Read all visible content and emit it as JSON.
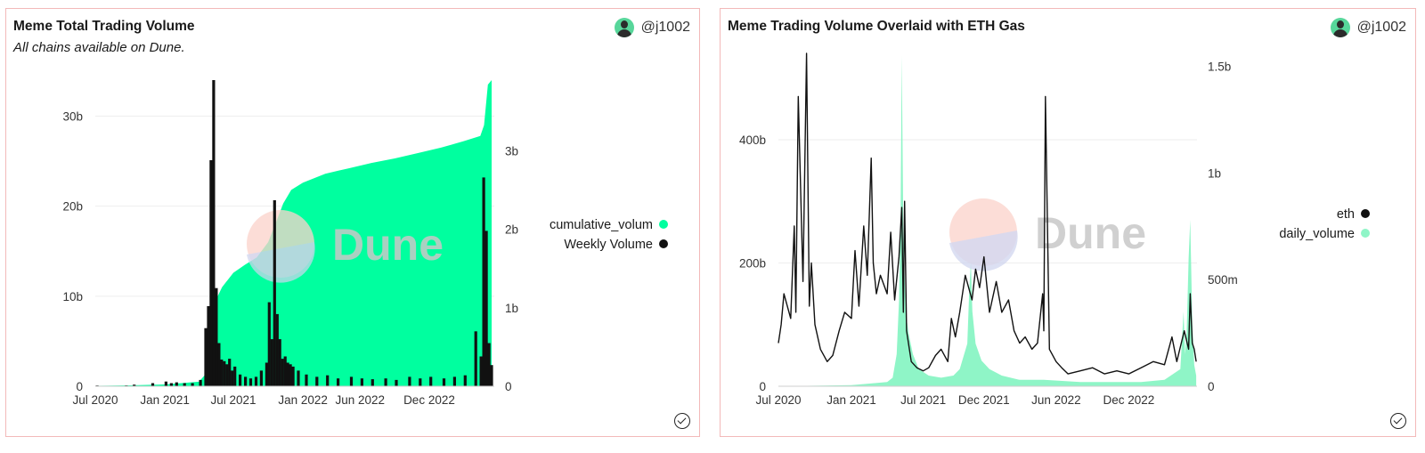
{
  "colors": {
    "area_green": "#00ff9f",
    "bars_black": "#111111",
    "light_green": "#8ff5c7",
    "grid": "#eeeeee",
    "watermark_pink": "#fbd3cb",
    "watermark_blue": "#cfd3ee",
    "watermark_text": "#c8c8c8"
  },
  "watermark": "Dune",
  "author": "@j1002",
  "chart_data": [
    {
      "type": "area+bar",
      "title": "Meme Total Trading Volume",
      "subtitle": "All chains available on Dune.",
      "x_ticks": [
        "Jul 2020",
        "Jan 2021",
        "Jul 2021",
        "Jan 2022",
        "Jun 2022",
        "Dec 2022"
      ],
      "y_left_ticks": [
        "0",
        "10b",
        "20b",
        "30b"
      ],
      "y_right_ticks": [
        "0",
        "1b",
        "2b",
        "3b"
      ],
      "y_left_lim": [
        0,
        34000000000
      ],
      "y_right_lim": [
        0,
        3900000000
      ],
      "legend_position": "right",
      "series": [
        {
          "name": "cumulative_volum",
          "axis": "left",
          "type": "area",
          "x": [
            "2020-07-01",
            "2020-10-01",
            "2021-01-01",
            "2021-04-01",
            "2021-04-22",
            "2021-05-08",
            "2021-05-15",
            "2021-06-01",
            "2021-07-01",
            "2021-08-01",
            "2021-09-01",
            "2021-10-01",
            "2021-10-29",
            "2021-11-10",
            "2021-12-01",
            "2022-01-01",
            "2022-03-01",
            "2022-05-01",
            "2022-07-01",
            "2022-09-01",
            "2022-11-01",
            "2023-01-01",
            "2023-03-01",
            "2023-04-15",
            "2023-04-25",
            "2023-05-05",
            "2023-05-15"
          ],
          "values": [
            50000000.0,
            100000000.0,
            200000000.0,
            500000000.0,
            1500000000.0,
            6000000000.0,
            9500000000.0,
            11000000000.0,
            12600000000.0,
            13500000000.0,
            14300000000.0,
            16000000000.0,
            19000000000.0,
            20300000000.0,
            21800000000.0,
            22600000000.0,
            23600000000.0,
            24200000000.0,
            24800000000.0,
            25300000000.0,
            25900000000.0,
            26500000000.0,
            27200000000.0,
            27800000000.0,
            29000000000.0,
            33500000000.0,
            34000000000.0
          ]
        },
        {
          "name": "Weekly Volume",
          "axis": "right",
          "type": "bar",
          "x": [
            "2020-07-06",
            "2020-09-21",
            "2020-10-12",
            "2020-11-30",
            "2021-01-04",
            "2021-01-18",
            "2021-02-01",
            "2021-02-22",
            "2021-03-15",
            "2021-04-05",
            "2021-04-19",
            "2021-04-26",
            "2021-05-03",
            "2021-05-10",
            "2021-05-17",
            "2021-05-24",
            "2021-05-31",
            "2021-06-07",
            "2021-06-14",
            "2021-06-21",
            "2021-06-28",
            "2021-07-05",
            "2021-07-19",
            "2021-08-02",
            "2021-08-16",
            "2021-08-30",
            "2021-09-13",
            "2021-09-27",
            "2021-10-04",
            "2021-10-11",
            "2021-10-18",
            "2021-10-25",
            "2021-11-01",
            "2021-11-08",
            "2021-11-15",
            "2021-11-22",
            "2021-11-29",
            "2021-12-06",
            "2021-12-20",
            "2022-01-10",
            "2022-02-07",
            "2022-03-07",
            "2022-04-04",
            "2022-05-09",
            "2022-06-06",
            "2022-07-04",
            "2022-08-08",
            "2022-09-05",
            "2022-10-10",
            "2022-11-07",
            "2022-12-05",
            "2023-01-09",
            "2023-02-06",
            "2023-03-06",
            "2023-04-03",
            "2023-04-17",
            "2023-04-24",
            "2023-05-01",
            "2023-05-08",
            "2023-05-15"
          ],
          "values": [
            10000000.0,
            10000000.0,
            20000000.0,
            40000000.0,
            60000000.0,
            40000000.0,
            50000000.0,
            40000000.0,
            40000000.0,
            80000000.0,
            740000000.0,
            1020000000.0,
            2880000000.0,
            3900000000.0,
            1250000000.0,
            550000000.0,
            340000000.0,
            320000000.0,
            280000000.0,
            350000000.0,
            200000000.0,
            250000000.0,
            150000000.0,
            120000000.0,
            100000000.0,
            120000000.0,
            200000000.0,
            300000000.0,
            1070000000.0,
            600000000.0,
            2370000000.0,
            920000000.0,
            600000000.0,
            350000000.0,
            380000000.0,
            300000000.0,
            280000000.0,
            250000000.0,
            200000000.0,
            150000000.0,
            120000000.0,
            140000000.0,
            100000000.0,
            120000000.0,
            100000000.0,
            90000000.0,
            100000000.0,
            80000000.0,
            120000000.0,
            100000000.0,
            120000000.0,
            100000000.0,
            120000000.0,
            140000000.0,
            700000000.0,
            380000000.0,
            2660000000.0,
            1980000000.0,
            550000000.0,
            270000000.0
          ]
        }
      ]
    },
    {
      "type": "area+line",
      "title": "Meme Trading Volume Overlaid with ETH Gas",
      "x_ticks": [
        "Jul 2020",
        "Jan 2021",
        "Jul 2021",
        "Dec 2021",
        "Jun 2022",
        "Dec 2022"
      ],
      "y_left_ticks": [
        "0",
        "200b",
        "400b"
      ],
      "y_right_ticks": [
        "0",
        "500m",
        "1b",
        "1.5b"
      ],
      "y_left_lim": [
        0,
        540000000000
      ],
      "y_right_lim": [
        0,
        1560000000
      ],
      "legend_position": "right",
      "series": [
        {
          "name": "eth",
          "axis": "left",
          "type": "line",
          "x": [
            "2020-07-01",
            "2020-07-08",
            "2020-07-15",
            "2020-08-01",
            "2020-08-10",
            "2020-08-14",
            "2020-08-20",
            "2020-09-01",
            "2020-09-10",
            "2020-09-17",
            "2020-09-22",
            "2020-10-01",
            "2020-10-15",
            "2020-11-01",
            "2020-11-15",
            "2020-12-01",
            "2020-12-15",
            "2021-01-01",
            "2021-01-10",
            "2021-01-20",
            "2021-02-01",
            "2021-02-10",
            "2021-02-20",
            "2021-02-25",
            "2021-03-05",
            "2021-03-15",
            "2021-04-01",
            "2021-04-10",
            "2021-04-20",
            "2021-05-01",
            "2021-05-08",
            "2021-05-12",
            "2021-05-15",
            "2021-05-20",
            "2021-06-01",
            "2021-06-15",
            "2021-07-01",
            "2021-07-15",
            "2021-08-01",
            "2021-08-15",
            "2021-09-01",
            "2021-09-10",
            "2021-09-20",
            "2021-10-01",
            "2021-10-15",
            "2021-11-01",
            "2021-11-10",
            "2021-11-20",
            "2021-12-01",
            "2021-12-15",
            "2022-01-01",
            "2022-01-15",
            "2022-02-01",
            "2022-02-15",
            "2022-03-01",
            "2022-03-15",
            "2022-04-01",
            "2022-04-15",
            "2022-04-28",
            "2022-05-01",
            "2022-05-05",
            "2022-05-15",
            "2022-06-01",
            "2022-06-15",
            "2022-07-01",
            "2022-08-01",
            "2022-09-01",
            "2022-10-01",
            "2022-11-01",
            "2022-12-01",
            "2023-01-01",
            "2023-02-01",
            "2023-03-01",
            "2023-03-20",
            "2023-04-01",
            "2023-04-20",
            "2023-05-01",
            "2023-05-05",
            "2023-05-10",
            "2023-05-15",
            "2023-05-20"
          ],
          "values": [
            70000000000.0,
            100000000000.0,
            150000000000.0,
            110000000000.0,
            260000000000.0,
            120000000000.0,
            470000000000.0,
            170000000000.0,
            540000000000.0,
            130000000000.0,
            200000000000.0,
            100000000000.0,
            60000000000.0,
            40000000000.0,
            50000000000.0,
            90000000000.0,
            120000000000.0,
            110000000000.0,
            220000000000.0,
            130000000000.0,
            260000000000.0,
            180000000000.0,
            370000000000.0,
            200000000000.0,
            150000000000.0,
            180000000000.0,
            150000000000.0,
            250000000000.0,
            140000000000.0,
            210000000000.0,
            290000000000.0,
            120000000000.0,
            300000000000.0,
            90000000000.0,
            40000000000.0,
            30000000000.0,
            25000000000.0,
            30000000000.0,
            50000000000.0,
            60000000000.0,
            40000000000.0,
            110000000000.0,
            80000000000.0,
            120000000000.0,
            180000000000.0,
            140000000000.0,
            190000000000.0,
            160000000000.0,
            210000000000.0,
            120000000000.0,
            170000000000.0,
            120000000000.0,
            140000000000.0,
            90000000000.0,
            70000000000.0,
            80000000000.0,
            60000000000.0,
            70000000000.0,
            150000000000.0,
            90000000000.0,
            470000000000.0,
            60000000000.0,
            40000000000.0,
            30000000000.0,
            20000000000.0,
            25000000000.0,
            30000000000.0,
            20000000000.0,
            25000000000.0,
            20000000000.0,
            30000000000.0,
            40000000000.0,
            35000000000.0,
            80000000000.0,
            40000000000.0,
            90000000000.0,
            60000000000.0,
            150000000000.0,
            70000000000.0,
            60000000000.0,
            40000000000.0
          ]
        },
        {
          "name": "daily_volume",
          "axis": "right",
          "type": "area",
          "x": [
            "2020-07-01",
            "2021-01-01",
            "2021-04-01",
            "2021-04-15",
            "2021-04-25",
            "2021-05-01",
            "2021-05-05",
            "2021-05-08",
            "2021-05-12",
            "2021-05-18",
            "2021-05-25",
            "2021-06-05",
            "2021-06-20",
            "2021-07-15",
            "2021-08-15",
            "2021-09-15",
            "2021-10-01",
            "2021-10-20",
            "2021-10-25",
            "2021-10-29",
            "2021-11-02",
            "2021-11-10",
            "2021-11-25",
            "2021-12-15",
            "2022-01-15",
            "2022-03-01",
            "2022-05-01",
            "2022-08-01",
            "2022-11-01",
            "2023-01-01",
            "2023-03-01",
            "2023-04-10",
            "2023-04-18",
            "2023-04-22",
            "2023-04-26",
            "2023-05-01",
            "2023-05-05",
            "2023-05-10",
            "2023-05-15",
            "2023-05-20"
          ],
          "values": [
            0,
            5000000.0,
            20000000.0,
            40000000.0,
            150000000.0,
            400000000.0,
            800000000.0,
            1550000000.0,
            700000000.0,
            350000000.0,
            250000000.0,
            150000000.0,
            80000000.0,
            50000000.0,
            40000000.0,
            50000000.0,
            80000000.0,
            200000000.0,
            450000000.0,
            580000000.0,
            350000000.0,
            200000000.0,
            120000000.0,
            80000000.0,
            50000000.0,
            30000000.0,
            30000000.0,
            20000000.0,
            20000000.0,
            20000000.0,
            30000000.0,
            80000000.0,
            350000000.0,
            150000000.0,
            250000000.0,
            600000000.0,
            780000000.0,
            300000000.0,
            100000000.0,
            50000000.0
          ]
        }
      ]
    }
  ]
}
